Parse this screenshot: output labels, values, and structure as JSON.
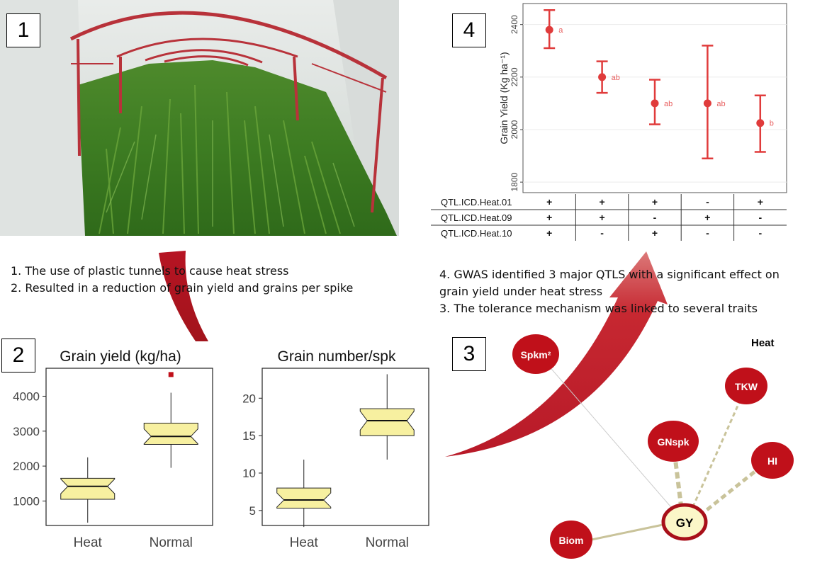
{
  "panels": {
    "p1": "1",
    "p2": "2",
    "p3": "3",
    "p4": "4"
  },
  "captions": {
    "left": [
      "1. The use of plastic tunnels to cause heat stress",
      "2. Resulted in a reduction of grain yield and grains per spike"
    ],
    "right": [
      "4. GWAS identified 3 major QTLS with a significant effect on",
      "grain yield under heat stress",
      "3. The tolerance mechanism was linked to several traits"
    ]
  },
  "chart_data": [
    {
      "type": "scatter",
      "title": "",
      "ylabel": "Grain Yield (Kg ha⁻¹)",
      "ylim": [
        1760,
        2480
      ],
      "yticks": [
        "1800",
        "2000",
        "2200",
        "2400"
      ],
      "points": [
        {
          "y": 2380,
          "lower": 2310,
          "upper": 2455,
          "letter": "a"
        },
        {
          "y": 2200,
          "lower": 2140,
          "upper": 2260,
          "letter": "ab"
        },
        {
          "y": 2100,
          "lower": 2020,
          "upper": 2190,
          "letter": "ab"
        },
        {
          "y": 2100,
          "lower": 1890,
          "upper": 2320,
          "letter": "ab"
        },
        {
          "y": 2025,
          "lower": 1915,
          "upper": 2130,
          "letter": "b"
        }
      ],
      "color": "#e03b3b",
      "table": {
        "rows": [
          {
            "label": "QTL.ICD.Heat.01",
            "values": [
              "+",
              "+",
              "+",
              "-",
              "+"
            ]
          },
          {
            "label": "QTL.ICD.Heat.09",
            "values": [
              "+",
              "+",
              "-",
              "+",
              "-"
            ]
          },
          {
            "label": "QTL.ICD.Heat.10",
            "values": [
              "+",
              "-",
              "+",
              "-",
              "-"
            ]
          }
        ]
      }
    },
    {
      "type": "boxplot",
      "title": "Grain yield (kg/ha)",
      "categories": [
        "Heat",
        "Normal"
      ],
      "ylim": [
        300,
        4800
      ],
      "yticks": [
        "1000",
        "2000",
        "3000",
        "4000"
      ],
      "boxes": [
        {
          "min": 380,
          "q1": 1050,
          "median": 1420,
          "q3": 1650,
          "max": 2250
        },
        {
          "min": 1950,
          "q1": 2620,
          "median": 2850,
          "q3": 3230,
          "max": 4100
        }
      ],
      "outliers": [
        [
          1,
          4620
        ]
      ],
      "fill": "#f7f0a0"
    },
    {
      "type": "boxplot",
      "title": "Grain number/spk",
      "categories": [
        "Heat",
        "Normal"
      ],
      "ylim": [
        3,
        24
      ],
      "yticks": [
        "5",
        "10",
        "15",
        "20"
      ],
      "boxes": [
        {
          "min": 2.8,
          "q1": 5.3,
          "median": 6.4,
          "q3": 8.0,
          "max": 11.8
        },
        {
          "min": 11.8,
          "q1": 15.0,
          "median": 17.0,
          "q3": 18.6,
          "max": 23.2
        }
      ],
      "outliers": [],
      "fill": "#f7f0a0"
    }
  ],
  "network": {
    "legend": "Heat",
    "center": "GY",
    "nodes": [
      "Spkm²",
      "TKW",
      "GNspk",
      "HI",
      "Biom"
    ],
    "node_color": "#c0101a",
    "center_fill": "#fbf6c8"
  }
}
